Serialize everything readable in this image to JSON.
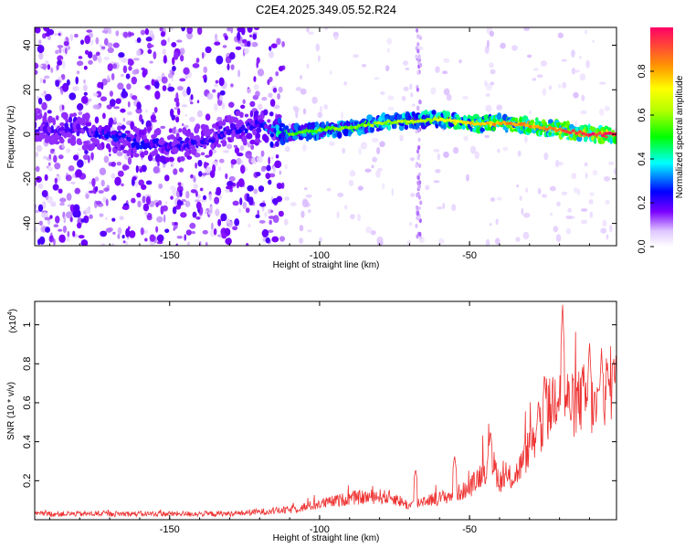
{
  "title": "C2E4.2025.349.05.52.R24",
  "chart_data": [
    {
      "type": "heatmap",
      "name": "spectrogram",
      "xlabel": "Height of straight line (km)",
      "ylabel": "Frequency (Hz)",
      "xlim": [
        -195,
        -1
      ],
      "ylim": [
        -50,
        48
      ],
      "xticks": [
        -150,
        -100,
        -50
      ],
      "yticks": [
        -40,
        -20,
        0,
        20,
        40
      ],
      "colorbar": {
        "label": "Normalized spectral amplitude",
        "range": [
          0,
          1
        ],
        "ticks": [
          0.0,
          0.2,
          0.4,
          0.6,
          0.8
        ]
      },
      "ridge": {
        "x": [
          -195,
          -180,
          -170,
          -160,
          -150,
          -140,
          -130,
          -120,
          -112,
          -100,
          -90,
          -80,
          -70,
          -60,
          -50,
          -40,
          -30,
          -20,
          -10,
          -1
        ],
        "freq": [
          3,
          2,
          0,
          -4,
          -5,
          -4,
          2,
          4,
          0,
          2,
          3,
          5,
          6,
          7,
          5,
          5,
          4,
          2,
          0,
          0
        ],
        "amplitude": [
          0.2,
          0.2,
          0.25,
          0.25,
          0.22,
          0.22,
          0.22,
          0.25,
          0.45,
          0.5,
          0.5,
          0.55,
          0.55,
          0.6,
          0.7,
          0.75,
          0.75,
          0.8,
          0.9,
          0.9
        ]
      }
    },
    {
      "type": "line",
      "name": "snr",
      "xlabel": "Height of straight line (km)",
      "ylabel": "SNR (10 * v/v)",
      "scale_label": "(x10",
      "scale_exp": "4",
      "scale_close": ")",
      "xlim": [
        -195,
        -1
      ],
      "ylim": [
        0,
        1.12
      ],
      "xticks": [
        -150,
        -100,
        -50
      ],
      "yticks": [
        0.2,
        0.4,
        0.6,
        0.8,
        1
      ],
      "color": "#ee3333",
      "trend": {
        "x": [
          -195,
          -160,
          -130,
          -110,
          -100,
          -90,
          -80,
          -75,
          -70,
          -65,
          -60,
          -55,
          -50,
          -45,
          -42,
          -40,
          -35,
          -32,
          -30,
          -25,
          -22,
          -20,
          -17,
          -15,
          -12,
          -10,
          -8,
          -5,
          -3,
          -1
        ],
        "y": [
          0.03,
          0.03,
          0.03,
          0.05,
          0.08,
          0.11,
          0.12,
          0.11,
          0.07,
          0.1,
          0.11,
          0.13,
          0.16,
          0.26,
          0.28,
          0.2,
          0.22,
          0.3,
          0.38,
          0.5,
          0.62,
          0.7,
          0.6,
          0.58,
          0.63,
          0.61,
          0.55,
          0.66,
          0.7,
          0.68
        ]
      },
      "peaks": [
        {
          "x": -68,
          "y": 0.26
        },
        {
          "x": -55,
          "y": 0.33
        },
        {
          "x": -43,
          "y": 0.46
        },
        {
          "x": -27,
          "y": 0.62
        },
        {
          "x": -25,
          "y": 0.76
        },
        {
          "x": -19,
          "y": 1.12
        },
        {
          "x": -10,
          "y": 0.92
        },
        {
          "x": -6,
          "y": 0.88
        },
        {
          "x": -2,
          "y": 0.82
        }
      ]
    }
  ]
}
